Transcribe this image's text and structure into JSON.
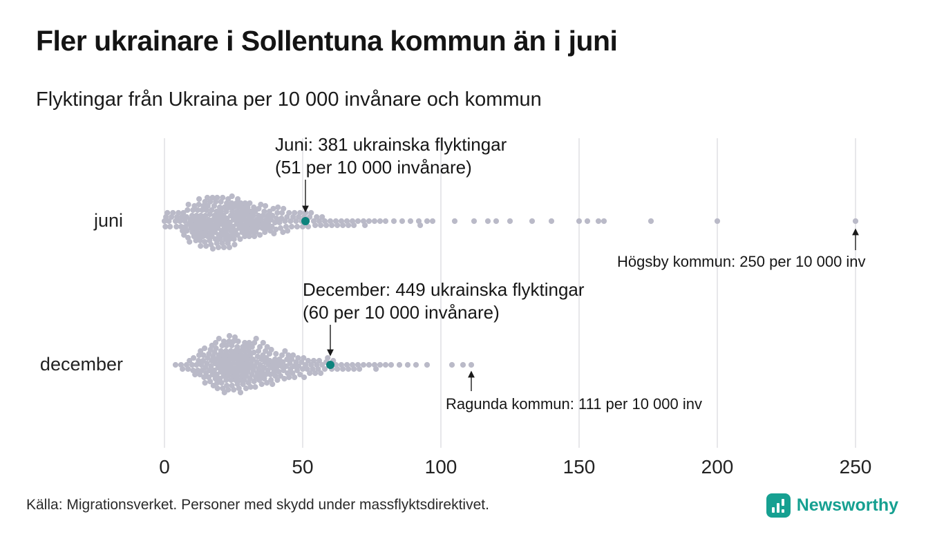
{
  "title": "Fler ukrainare i Sollentuna kommun än i juni",
  "subtitle": "Flyktingar från Ukraina per 10 000 invånare och kommun",
  "source": "Källa: Migrationsverket. Personer med skydd under massflyktsdirektivet.",
  "brand": {
    "name": "Newsworthy",
    "color": "#16a091"
  },
  "colors": {
    "dot": "#babac8",
    "highlight": "#0d837d",
    "grid": "#cfcfd4",
    "text": "#1a1a1a"
  },
  "chart_data": {
    "type": "scatter",
    "variant": "beeswarm-strip",
    "title": "Fler ukrainare i Sollentuna kommun än i juni",
    "subtitle": "Flyktingar från Ukraina per 10 000 invånare och kommun",
    "xlabel": "Flyktingar från Ukraina per 10 000 invånare",
    "x_axis": {
      "ticks": [
        0,
        50,
        100,
        150,
        200,
        250
      ],
      "xlim": [
        0,
        260
      ],
      "grid": true
    },
    "rows": [
      {
        "label": "juni",
        "highlight": {
          "value": 51,
          "line1": "Juni: 381 ukrainska flyktingar",
          "line2": "(51 per 10 000 invånare)"
        },
        "outlier": {
          "value": 250,
          "label": "Högsby kommun: 250 per 10 000 inv"
        },
        "bins": [
          [
            0,
            5
          ],
          [
            2,
            3
          ],
          [
            4,
            5
          ],
          [
            6,
            7
          ],
          [
            8,
            9
          ],
          [
            10,
            11
          ],
          [
            12,
            13
          ],
          [
            14,
            14
          ],
          [
            16,
            14
          ],
          [
            18,
            14
          ],
          [
            20,
            14
          ],
          [
            22,
            14
          ],
          [
            24,
            13
          ],
          [
            26,
            12
          ],
          [
            28,
            11
          ],
          [
            30,
            10
          ],
          [
            32,
            9
          ],
          [
            34,
            8
          ],
          [
            36,
            8
          ],
          [
            38,
            7
          ],
          [
            40,
            6
          ],
          [
            42,
            6
          ],
          [
            44,
            5
          ],
          [
            46,
            4
          ],
          [
            48,
            4
          ],
          [
            50,
            4
          ],
          [
            52,
            3
          ],
          [
            54,
            3
          ],
          [
            56,
            3
          ],
          [
            58,
            2
          ],
          [
            60,
            2
          ],
          [
            62,
            2
          ],
          [
            64,
            2
          ],
          [
            66,
            2
          ],
          [
            68,
            2
          ],
          [
            70,
            1
          ],
          [
            72,
            2
          ],
          [
            74,
            1
          ],
          [
            76,
            1
          ],
          [
            78,
            1
          ],
          [
            80,
            1
          ],
          [
            83,
            1
          ],
          [
            86,
            1
          ],
          [
            89,
            1
          ],
          [
            92,
            2
          ],
          [
            95,
            1
          ],
          [
            97,
            1
          ],
          [
            105,
            1
          ],
          [
            112,
            1
          ],
          [
            117,
            1
          ],
          [
            120,
            1
          ],
          [
            125,
            1
          ],
          [
            133,
            1
          ],
          [
            140,
            1
          ],
          [
            150,
            1
          ],
          [
            153,
            1
          ],
          [
            157,
            1
          ],
          [
            159,
            1
          ],
          [
            176,
            1
          ],
          [
            200,
            1
          ],
          [
            250,
            1
          ]
        ]
      },
      {
        "label": "december",
        "highlight": {
          "value": 60,
          "line1": "December: 449 ukrainska flyktingar",
          "line2": "(60 per 10 000 invånare)"
        },
        "outlier": {
          "value": 111,
          "label": "Ragunda kommun: 111 per 10 000 inv"
        },
        "bins": [
          [
            4,
            1
          ],
          [
            6,
            2
          ],
          [
            8,
            3
          ],
          [
            10,
            5
          ],
          [
            12,
            7
          ],
          [
            14,
            9
          ],
          [
            16,
            11
          ],
          [
            18,
            13
          ],
          [
            20,
            14
          ],
          [
            22,
            15
          ],
          [
            24,
            15
          ],
          [
            26,
            15
          ],
          [
            28,
            14
          ],
          [
            30,
            13
          ],
          [
            32,
            12
          ],
          [
            34,
            11
          ],
          [
            36,
            10
          ],
          [
            38,
            9
          ],
          [
            40,
            8
          ],
          [
            42,
            7
          ],
          [
            44,
            7
          ],
          [
            46,
            6
          ],
          [
            48,
            5
          ],
          [
            50,
            5
          ],
          [
            52,
            4
          ],
          [
            54,
            4
          ],
          [
            56,
            3
          ],
          [
            58,
            3
          ],
          [
            60,
            3
          ],
          [
            62,
            2
          ],
          [
            64,
            2
          ],
          [
            66,
            2
          ],
          [
            68,
            2
          ],
          [
            70,
            2
          ],
          [
            72,
            1
          ],
          [
            74,
            1
          ],
          [
            76,
            2
          ],
          [
            78,
            1
          ],
          [
            80,
            1
          ],
          [
            82,
            1
          ],
          [
            85,
            1
          ],
          [
            88,
            1
          ],
          [
            91,
            1
          ],
          [
            95,
            1
          ],
          [
            104,
            1
          ],
          [
            108,
            1
          ],
          [
            111,
            1
          ]
        ]
      }
    ]
  }
}
